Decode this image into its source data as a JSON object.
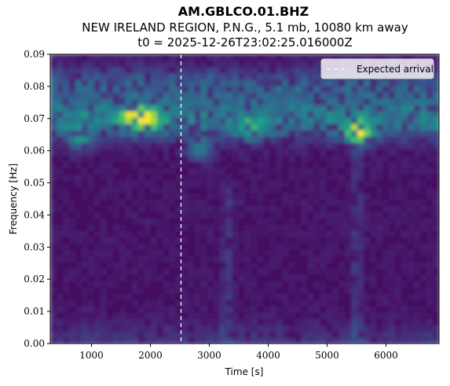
{
  "chart_data": {
    "type": "heatmap",
    "title": "AM.GBLCO.01.BHZ",
    "subtitle": "NEW IRELAND REGION, P.N.G., 5.1 mb, 10080 km away",
    "subtitle2": "t0 = 2025-12-26T23:02:25.016000Z",
    "xlabel": "Time [s]",
    "ylabel": "Frequency [Hz]",
    "xlim": [
      300,
      6900
    ],
    "ylim": [
      0.0,
      0.09
    ],
    "x_ticks": [
      1000,
      2000,
      3000,
      4000,
      5000,
      6000
    ],
    "x_tick_labels": [
      "1000",
      "2000",
      "3000",
      "4000",
      "5000",
      "6000"
    ],
    "y_ticks": [
      0.0,
      0.01,
      0.02,
      0.03,
      0.04,
      0.05,
      0.06,
      0.07,
      0.08,
      0.09
    ],
    "y_tick_labels": [
      "0.00",
      "0.01",
      "0.02",
      "0.03",
      "0.04",
      "0.05",
      "0.06",
      "0.07",
      "0.08",
      "0.09"
    ],
    "colormap": "viridis",
    "expected_arrival_s": 2520,
    "legend": {
      "label": "Expected arrival",
      "placement": "top-right"
    },
    "energy_bands": [
      {
        "t_start": 300,
        "t_end": 6900,
        "f_center": 0.07,
        "level": "high"
      },
      {
        "t_start": 300,
        "t_end": 6900,
        "f_center": 0.08,
        "level": "medium"
      },
      {
        "t_start": 300,
        "t_end": 6900,
        "f_center": 0.0,
        "level": "low"
      }
    ],
    "hotspots": [
      {
        "t": 1700,
        "f": 0.0705,
        "level": "high"
      },
      {
        "t": 1950,
        "f": 0.07,
        "level": "high"
      },
      {
        "t": 5530,
        "f": 0.0655,
        "level": "highest"
      },
      {
        "t": 2830,
        "f": 0.0605,
        "level": "medium"
      },
      {
        "t": 3700,
        "f": 0.0665,
        "level": "medium"
      },
      {
        "t": 800,
        "f": 0.064,
        "level": "medium"
      }
    ],
    "vertical_streaks": [
      {
        "t": 5500,
        "f_min": 0.0,
        "f_max": 0.06
      },
      {
        "t": 3300,
        "f_min": 0.0,
        "f_max": 0.05
      }
    ]
  }
}
